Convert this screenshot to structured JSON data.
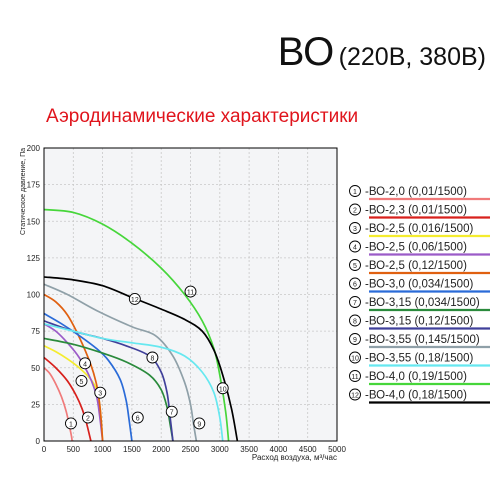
{
  "title_main": "ВО",
  "title_sub": "(220В, 380В)",
  "subtitle": "Аэродинамические характеристики",
  "chart_data": {
    "type": "line",
    "xlabel": "Расход воздуха, м³/час",
    "ylabel": "Статическое давление, Па",
    "xlim": [
      0,
      5000
    ],
    "ylim": [
      0,
      200
    ],
    "xticks": [
      "0",
      "500",
      "1000",
      "1500",
      "2000",
      "2500",
      "3000",
      "3500",
      "4000",
      "4500",
      "5000"
    ],
    "yticks": [
      "0",
      "25",
      "50",
      "75",
      "100",
      "125",
      "150",
      "175",
      "200"
    ],
    "grid": true,
    "legend_position": "right",
    "series": [
      {
        "name": "-ВО-2,0 (0,01/1500)",
        "marker": "1",
        "color": "#f07a7a",
        "label_at": [
          460,
          12
        ],
        "x": [
          0,
          100,
          200,
          300,
          380,
          440,
          470,
          480
        ],
        "y": [
          50,
          46,
          39,
          30,
          20,
          9,
          3,
          0
        ]
      },
      {
        "name": "-ВО-2,3 (0,01/1500)",
        "marker": "2",
        "color": "#d8201c",
        "label_at": [
          750,
          16
        ],
        "x": [
          0,
          200,
          400,
          550,
          650,
          720,
          770,
          800
        ],
        "y": [
          57,
          50,
          41,
          31,
          22,
          13,
          5,
          0
        ]
      },
      {
        "name": "-ВО-2,5 (0,016/1500)",
        "marker": "3",
        "color": "#f4ec2e",
        "label_at": [
          960,
          33
        ],
        "x": [
          0,
          200,
          400,
          600,
          800,
          900,
          950,
          980,
          1000
        ],
        "y": [
          65,
          61,
          56,
          50,
          42,
          35,
          25,
          12,
          0
        ]
      },
      {
        "name": "-ВО-2,5 (0,06/1500)",
        "marker": "4",
        "color": "#9b5bc8",
        "label_at": [
          700,
          53
        ],
        "x": [
          0,
          200,
          400,
          600,
          800,
          900,
          950,
          1000
        ],
        "y": [
          80,
          75,
          67,
          57,
          42,
          30,
          17,
          0
        ]
      },
      {
        "name": "-ВО-2,5 (0,12/1500)",
        "marker": "5",
        "color": "#e06010",
        "label_at": [
          640,
          41
        ],
        "x": [
          0,
          200,
          400,
          600,
          800,
          900,
          950,
          980,
          1000
        ],
        "y": [
          100,
          95,
          86,
          71,
          52,
          38,
          25,
          12,
          0
        ]
      },
      {
        "name": "-ВО-3,0 (0,034/1500)",
        "marker": "6",
        "color": "#2a6bd8",
        "label_at": [
          1600,
          16
        ],
        "x": [
          0,
          300,
          600,
          900,
          1100,
          1300,
          1400,
          1450,
          1500
        ],
        "y": [
          87,
          80,
          72,
          63,
          55,
          42,
          28,
          15,
          0
        ]
      },
      {
        "name": "-ВО-3,15 (0,034/1500)",
        "marker": "7",
        "color": "#2a8a3c",
        "label_at": [
          2180,
          20
        ],
        "x": [
          0,
          500,
          1000,
          1400,
          1800,
          2000,
          2100,
          2150,
          2200
        ],
        "y": [
          70,
          66,
          60,
          54,
          45,
          35,
          23,
          12,
          0
        ]
      },
      {
        "name": "-ВО-3,15 (0,12/1500)",
        "marker": "8",
        "color": "#40409a",
        "label_at": [
          1850,
          57
        ],
        "x": [
          0,
          500,
          1000,
          1400,
          1800,
          2000,
          2100,
          2150,
          2200
        ],
        "y": [
          82,
          75,
          70,
          65,
          58,
          47,
          33,
          17,
          0
        ]
      },
      {
        "name": "-ВО-3,55 (0,145/1500)",
        "marker": "9",
        "color": "#8fa0a8",
        "label_at": [
          2650,
          12
        ],
        "x": [
          0,
          400,
          900,
          1500,
          1900,
          2200,
          2400,
          2500,
          2550,
          2600
        ],
        "y": [
          107,
          100,
          89,
          78,
          72,
          58,
          40,
          25,
          12,
          0
        ]
      },
      {
        "name": "-ВО-3,55 (0,18/1500)",
        "marker": "10",
        "color": "#66e8f0",
        "label_at": [
          3050,
          36
        ],
        "x": [
          0,
          500,
          1000,
          1500,
          2000,
          2400,
          2700,
          2900,
          3000,
          3050
        ],
        "y": [
          80,
          75,
          70,
          67,
          64,
          58,
          47,
          33,
          16,
          0
        ]
      },
      {
        "name": "-ВО-4,0 (0,19/1500)",
        "marker": "11",
        "color": "#46d63a",
        "label_at": [
          2500,
          102
        ],
        "x": [
          0,
          500,
          1000,
          1500,
          2000,
          2400,
          2700,
          2900,
          3000,
          3100,
          3150
        ],
        "y": [
          158,
          156,
          148,
          135,
          118,
          100,
          82,
          63,
          45,
          20,
          0
        ]
      },
      {
        "name": "-ВО-4,0 (0,18/1500)",
        "marker": "12",
        "color": "#000000",
        "label_at": [
          1550,
          97
        ],
        "x": [
          0,
          500,
          1000,
          1500,
          2000,
          2400,
          2700,
          2900,
          3050,
          3200,
          3300
        ],
        "y": [
          112,
          110,
          106,
          98,
          90,
          83,
          75,
          62,
          45,
          22,
          0
        ]
      }
    ]
  }
}
